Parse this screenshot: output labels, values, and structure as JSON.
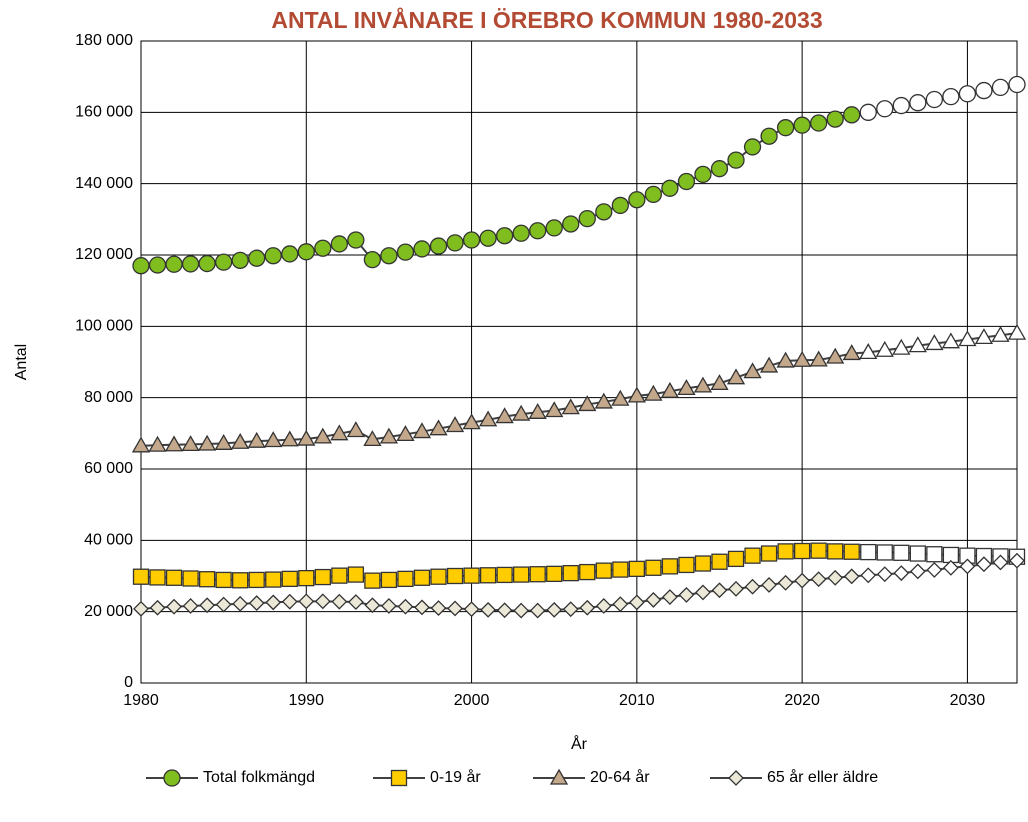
{
  "chart_data": {
    "type": "line",
    "title": "ANTAL INVÅNARE I ÖREBRO KOMMUN 1980-2033",
    "x_label": "År",
    "y_label": "Antal",
    "x": [
      1980,
      1981,
      1982,
      1983,
      1984,
      1985,
      1986,
      1987,
      1988,
      1989,
      1990,
      1991,
      1992,
      1993,
      1994,
      1995,
      1996,
      1997,
      1998,
      1999,
      2000,
      2001,
      2002,
      2003,
      2004,
      2005,
      2006,
      2007,
      2008,
      2009,
      2010,
      2011,
      2012,
      2013,
      2014,
      2015,
      2016,
      2017,
      2018,
      2019,
      2020,
      2021,
      2022,
      2023,
      2024,
      2025,
      2026,
      2027,
      2028,
      2029,
      2030,
      2031,
      2032,
      2033
    ],
    "xlim": [
      1980,
      2033
    ],
    "xticks": [
      1980,
      1990,
      2000,
      2010,
      2020,
      2030
    ],
    "ylim": [
      0,
      180000
    ],
    "yticks": [
      0,
      {
        "value": 20000,
        "label": "20 000"
      },
      {
        "value": 40000,
        "label": "40 000"
      },
      {
        "value": 60000,
        "label": "60 000"
      },
      {
        "value": 80000,
        "label": "80 000"
      },
      {
        "value": 100000,
        "label": "100 000"
      },
      {
        "value": 120000,
        "label": "120 000"
      },
      {
        "value": 140000,
        "label": "140 000"
      },
      {
        "value": 160000,
        "label": "160 000"
      },
      {
        "value": 180000,
        "label": "180 000"
      }
    ],
    "grid": true,
    "legend": "bottom",
    "open_markers_from": 2024,
    "series": [
      {
        "name": "Total folkmängd",
        "color": "#80bd1e",
        "marker": "circle",
        "values": [
          117000,
          117200,
          117400,
          117500,
          117600,
          118000,
          118500,
          119100,
          119800,
          120300,
          120900,
          121900,
          123100,
          124200,
          118700,
          119800,
          120800,
          121700,
          122500,
          123400,
          124200,
          124700,
          125400,
          126100,
          126800,
          127600,
          128700,
          130200,
          132100,
          133900,
          135500,
          137000,
          138700,
          140600,
          142600,
          144200,
          146600,
          150300,
          153300,
          155700,
          156400,
          157000,
          158100,
          159300,
          160000,
          161000,
          161900,
          162700,
          163600,
          164400,
          165200,
          166100,
          167000,
          167800
        ]
      },
      {
        "name": "0-19 år",
        "color": "#ffcc00",
        "marker": "square",
        "values": [
          29800,
          29600,
          29500,
          29300,
          29100,
          28900,
          28800,
          28900,
          29000,
          29200,
          29400,
          29700,
          30100,
          30400,
          28700,
          28900,
          29200,
          29500,
          29800,
          30000,
          30100,
          30200,
          30300,
          30400,
          30500,
          30600,
          30800,
          31100,
          31500,
          31800,
          32000,
          32300,
          32700,
          33100,
          33500,
          34000,
          34800,
          35700,
          36300,
          36900,
          37000,
          37100,
          36900,
          36800,
          36700,
          36600,
          36500,
          36300,
          36100,
          35900,
          35700,
          35600,
          35500,
          35400
        ]
      },
      {
        "name": "20-64 år",
        "color": "#c4a88c",
        "marker": "triangle",
        "values": [
          66500,
          66700,
          66800,
          66900,
          67000,
          67200,
          67500,
          67800,
          68000,
          68200,
          68400,
          69000,
          69900,
          70800,
          68300,
          69000,
          69700,
          70500,
          71300,
          72200,
          73000,
          73800,
          74700,
          75400,
          75900,
          76400,
          77200,
          78100,
          78800,
          79600,
          80500,
          81000,
          81800,
          82600,
          83300,
          84000,
          85600,
          87300,
          88900,
          90300,
          90500,
          90600,
          91400,
          92400,
          92700,
          93300,
          93900,
          94600,
          95200,
          95700,
          96300,
          96900,
          97500,
          98100
        ]
      },
      {
        "name": "65 år eller äldre",
        "color": "#ece8d8",
        "marker": "diamond",
        "values": [
          20800,
          21100,
          21400,
          21600,
          21800,
          22000,
          22200,
          22400,
          22600,
          22800,
          22900,
          22900,
          22800,
          22700,
          21800,
          21600,
          21400,
          21200,
          21000,
          20900,
          20700,
          20500,
          20400,
          20300,
          20300,
          20500,
          20700,
          21100,
          21600,
          22100,
          22600,
          23300,
          24100,
          24700,
          25400,
          26000,
          26400,
          27000,
          27500,
          28100,
          28700,
          29100,
          29500,
          29900,
          30200,
          30500,
          30800,
          31300,
          31700,
          32300,
          32700,
          33300,
          33800,
          34300
        ]
      }
    ]
  }
}
